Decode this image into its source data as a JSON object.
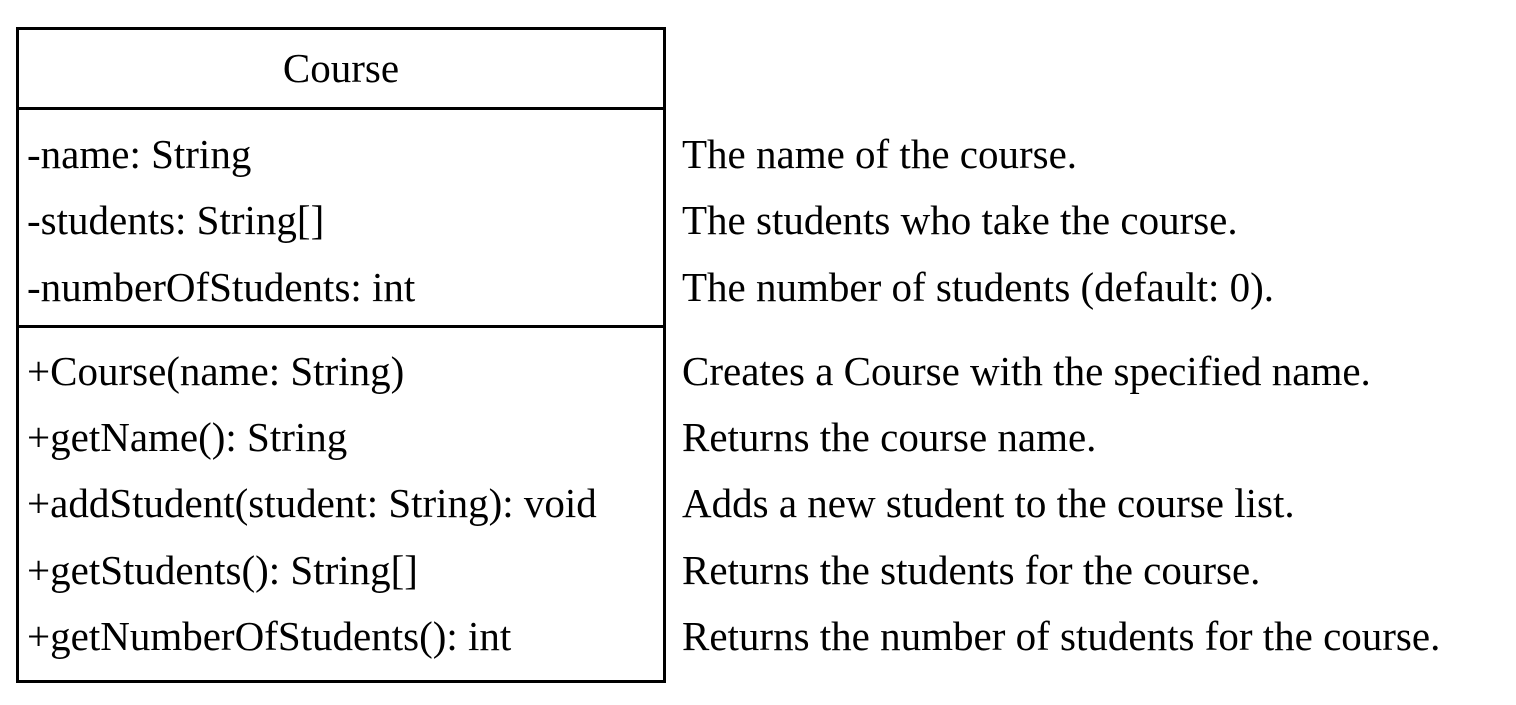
{
  "uml_class": {
    "name": "Course",
    "attributes": [
      "-name: String",
      "-students: String[]",
      "-numberOfStudents: int"
    ],
    "methods": [
      "+Course(name: String)",
      "+getName(): String",
      "+addStudent(student: String): void",
      "+getStudents(): String[]",
      "+getNumberOfStudents(): int"
    ]
  },
  "descriptions": {
    "attributes": [
      "The name of the course.",
      "The students who take the course.",
      "The number of students (default: 0)."
    ],
    "methods": [
      "Creates a Course with the specified name.",
      "Returns the course name.",
      "Adds a new student to the course list.",
      "Returns the students for the course.",
      "Returns the number of students for the course."
    ]
  }
}
